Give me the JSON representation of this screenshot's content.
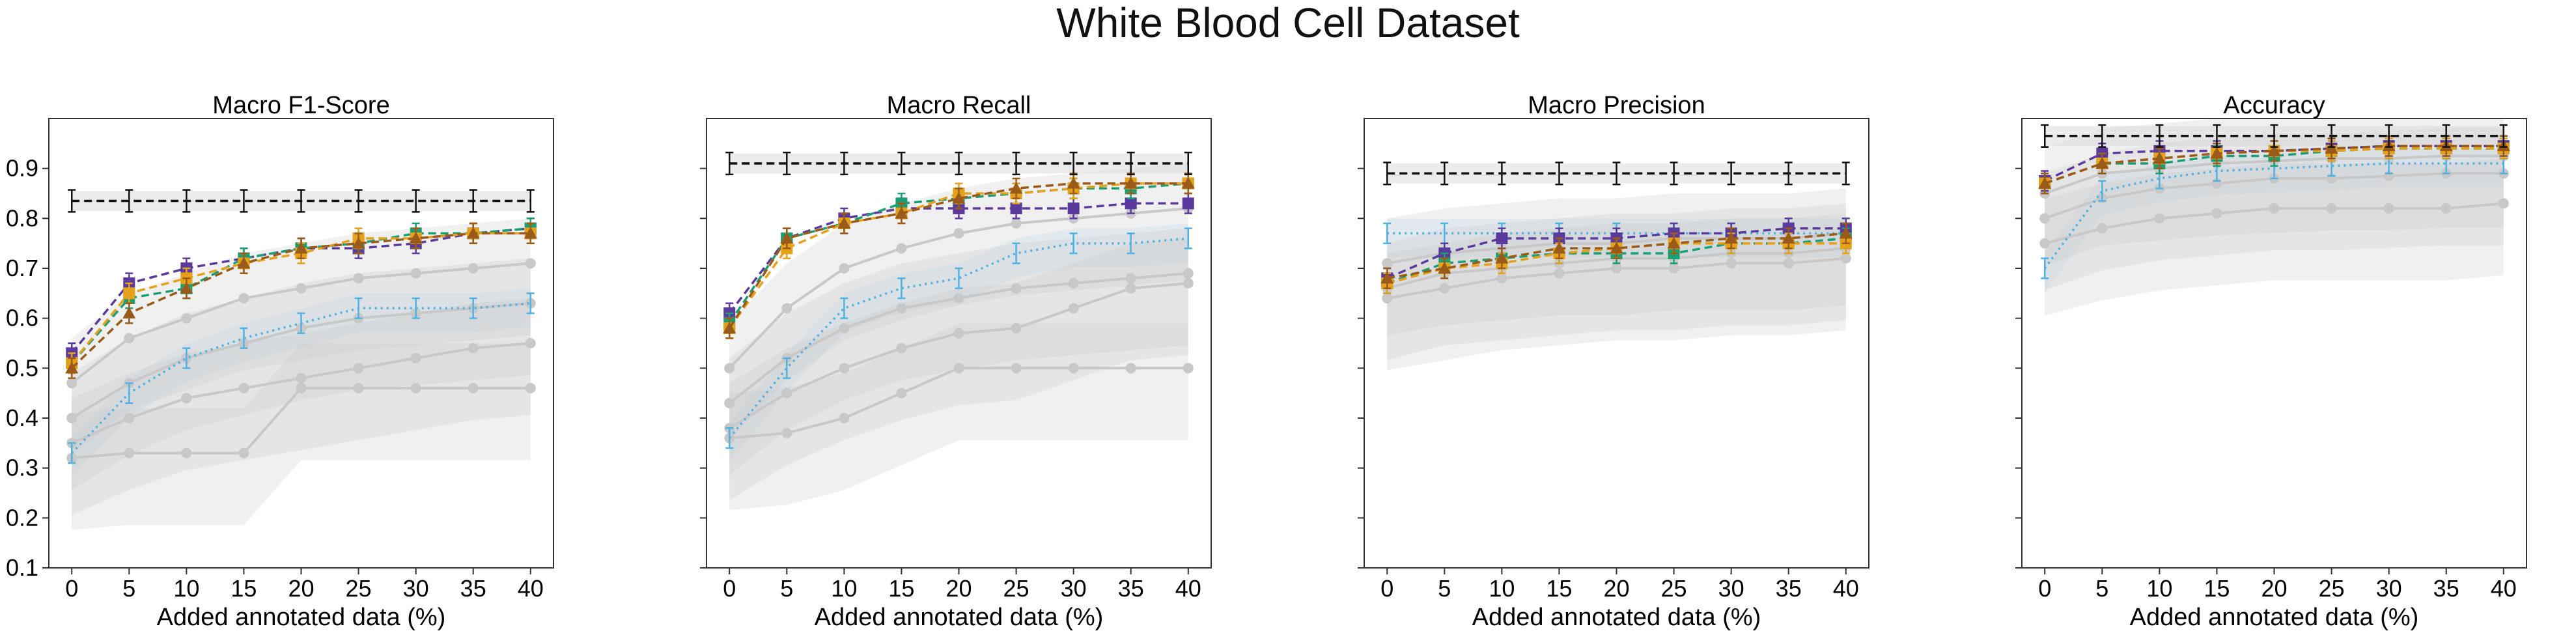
{
  "figure_title": "White Blood Cell Dataset",
  "colors": {
    "black": "#111111",
    "purple": "#5b3a9e",
    "green": "#1a9e74",
    "orange": "#e6a11a",
    "brown": "#9a5a1a",
    "blue": "#4fb2e3",
    "gray": "#c8c8c8"
  },
  "chart_data": [
    {
      "type": "line",
      "title": "Macro F1-Score",
      "xlabel": "Added annotated data (%)",
      "ylabel": "",
      "x": [
        0,
        5,
        10,
        15,
        20,
        25,
        30,
        35,
        40
      ],
      "xlim": [
        -2,
        42
      ],
      "ylim": [
        0.1,
        1.0
      ],
      "yticks": [
        "0.1",
        "0.2",
        "0.3",
        "0.4",
        "0.5",
        "0.6",
        "0.7",
        "0.8",
        "0.9"
      ],
      "grid": false,
      "legend": "none",
      "series": [
        {
          "values": [
            0.835,
            0.835,
            0.835,
            0.835,
            0.835,
            0.835,
            0.835,
            0.835,
            0.835
          ],
          "style": "dashed",
          "marker": "none",
          "color": "black"
        },
        {
          "values": [
            0.53,
            0.67,
            0.7,
            0.72,
            0.74,
            0.74,
            0.75,
            0.77,
            0.78
          ],
          "style": "dashed",
          "marker": "square",
          "color": "purple"
        },
        {
          "values": [
            0.51,
            0.64,
            0.66,
            0.72,
            0.74,
            0.75,
            0.77,
            0.77,
            0.78
          ],
          "style": "dashed",
          "marker": "square",
          "color": "green"
        },
        {
          "values": [
            0.51,
            0.65,
            0.68,
            0.71,
            0.73,
            0.76,
            0.76,
            0.77,
            0.77
          ],
          "style": "dashed",
          "marker": "square",
          "color": "orange"
        },
        {
          "values": [
            0.5,
            0.61,
            0.66,
            0.71,
            0.74,
            0.75,
            0.76,
            0.77,
            0.77
          ],
          "style": "dashed",
          "marker": "triangle",
          "color": "brown"
        },
        {
          "values": [
            0.33,
            0.45,
            0.52,
            0.56,
            0.59,
            0.62,
            0.62,
            0.62,
            0.63
          ],
          "style": "dotted",
          "marker": "none",
          "color": "blue"
        },
        {
          "values": [
            0.47,
            0.56,
            0.6,
            0.64,
            0.66,
            0.68,
            0.69,
            0.7,
            0.71
          ],
          "style": "solid",
          "marker": "circle",
          "color": "gray"
        },
        {
          "values": [
            0.4,
            0.47,
            0.52,
            0.55,
            0.58,
            0.6,
            0.61,
            0.62,
            0.63
          ],
          "style": "solid",
          "marker": "circle",
          "color": "gray"
        },
        {
          "values": [
            0.35,
            0.4,
            0.44,
            0.46,
            0.48,
            0.5,
            0.52,
            0.54,
            0.55
          ],
          "style": "solid",
          "marker": "circle",
          "color": "gray"
        },
        {
          "values": [
            0.32,
            0.33,
            0.33,
            0.33,
            0.46,
            0.46,
            0.46,
            0.46,
            0.46
          ],
          "style": "solid",
          "marker": "circle",
          "color": "gray"
        }
      ]
    },
    {
      "type": "line",
      "title": "Macro Recall",
      "xlabel": "Added annotated data (%)",
      "ylabel": "",
      "x": [
        0,
        5,
        10,
        15,
        20,
        25,
        30,
        35,
        40
      ],
      "xlim": [
        -2,
        42
      ],
      "ylim": [
        0.1,
        1.0
      ],
      "yticks": [],
      "grid": false,
      "legend": "none",
      "series": [
        {
          "values": [
            0.91,
            0.91,
            0.91,
            0.91,
            0.91,
            0.91,
            0.91,
            0.91,
            0.91
          ],
          "style": "dashed",
          "marker": "none",
          "color": "black"
        },
        {
          "values": [
            0.61,
            0.76,
            0.8,
            0.82,
            0.82,
            0.82,
            0.82,
            0.83,
            0.83
          ],
          "style": "dashed",
          "marker": "square",
          "color": "purple"
        },
        {
          "values": [
            0.59,
            0.76,
            0.79,
            0.83,
            0.84,
            0.85,
            0.86,
            0.86,
            0.87
          ],
          "style": "dashed",
          "marker": "square",
          "color": "green"
        },
        {
          "values": [
            0.58,
            0.74,
            0.79,
            0.81,
            0.85,
            0.85,
            0.86,
            0.87,
            0.87
          ],
          "style": "dashed",
          "marker": "square",
          "color": "orange"
        },
        {
          "values": [
            0.58,
            0.76,
            0.79,
            0.81,
            0.84,
            0.86,
            0.87,
            0.87,
            0.87
          ],
          "style": "dashed",
          "marker": "triangle",
          "color": "brown"
        },
        {
          "values": [
            0.36,
            0.5,
            0.62,
            0.66,
            0.68,
            0.73,
            0.75,
            0.75,
            0.76
          ],
          "style": "dotted",
          "marker": "none",
          "color": "blue"
        },
        {
          "values": [
            0.5,
            0.62,
            0.7,
            0.74,
            0.77,
            0.79,
            0.8,
            0.81,
            0.82
          ],
          "style": "solid",
          "marker": "circle",
          "color": "gray"
        },
        {
          "values": [
            0.43,
            0.52,
            0.58,
            0.62,
            0.64,
            0.66,
            0.67,
            0.68,
            0.69
          ],
          "style": "solid",
          "marker": "circle",
          "color": "gray"
        },
        {
          "values": [
            0.38,
            0.45,
            0.5,
            0.54,
            0.57,
            0.58,
            0.62,
            0.66,
            0.67
          ],
          "style": "solid",
          "marker": "circle",
          "color": "gray"
        },
        {
          "values": [
            0.36,
            0.37,
            0.4,
            0.45,
            0.5,
            0.5,
            0.5,
            0.5,
            0.5
          ],
          "style": "solid",
          "marker": "circle",
          "color": "gray"
        }
      ]
    },
    {
      "type": "line",
      "title": "Macro Precision",
      "xlabel": "Added annotated data (%)",
      "ylabel": "",
      "x": [
        0,
        5,
        10,
        15,
        20,
        25,
        30,
        35,
        40
      ],
      "xlim": [
        -2,
        42
      ],
      "ylim": [
        0.1,
        1.0
      ],
      "yticks": [],
      "grid": false,
      "legend": "none",
      "series": [
        {
          "values": [
            0.89,
            0.89,
            0.89,
            0.89,
            0.89,
            0.89,
            0.89,
            0.89,
            0.89
          ],
          "style": "dashed",
          "marker": "none",
          "color": "black"
        },
        {
          "values": [
            0.68,
            0.73,
            0.76,
            0.76,
            0.76,
            0.77,
            0.77,
            0.78,
            0.78
          ],
          "style": "dashed",
          "marker": "square",
          "color": "purple"
        },
        {
          "values": [
            0.67,
            0.71,
            0.72,
            0.73,
            0.73,
            0.73,
            0.75,
            0.75,
            0.76
          ],
          "style": "dashed",
          "marker": "square",
          "color": "green"
        },
        {
          "values": [
            0.67,
            0.7,
            0.71,
            0.73,
            0.74,
            0.75,
            0.75,
            0.75,
            0.75
          ],
          "style": "dashed",
          "marker": "square",
          "color": "orange"
        },
        {
          "values": [
            0.68,
            0.7,
            0.72,
            0.74,
            0.74,
            0.75,
            0.76,
            0.76,
            0.77
          ],
          "style": "dashed",
          "marker": "triangle",
          "color": "brown"
        },
        {
          "values": [
            0.77,
            0.77,
            0.77,
            0.77,
            0.77,
            0.77,
            0.77,
            0.77,
            0.77
          ],
          "style": "dotted",
          "marker": "none",
          "color": "blue"
        },
        {
          "values": [
            0.71,
            0.73,
            0.74,
            0.75,
            0.75,
            0.76,
            0.76,
            0.76,
            0.77
          ],
          "style": "solid",
          "marker": "circle",
          "color": "gray"
        },
        {
          "values": [
            0.66,
            0.69,
            0.7,
            0.71,
            0.72,
            0.72,
            0.73,
            0.73,
            0.74
          ],
          "style": "solid",
          "marker": "circle",
          "color": "gray"
        },
        {
          "values": [
            0.64,
            0.66,
            0.68,
            0.69,
            0.7,
            0.7,
            0.71,
            0.71,
            0.72
          ],
          "style": "solid",
          "marker": "circle",
          "color": "gray"
        }
      ]
    },
    {
      "type": "line",
      "title": "Accuracy",
      "xlabel": "Added annotated data (%)",
      "ylabel": "",
      "x": [
        0,
        5,
        10,
        15,
        20,
        25,
        30,
        35,
        40
      ],
      "xlim": [
        -2,
        42
      ],
      "ylim": [
        0.1,
        1.0
      ],
      "yticks": [],
      "grid": false,
      "legend": "none",
      "series": [
        {
          "values": [
            0.965,
            0.965,
            0.965,
            0.965,
            0.965,
            0.965,
            0.965,
            0.965,
            0.965
          ],
          "style": "dashed",
          "marker": "none",
          "color": "black"
        },
        {
          "values": [
            0.875,
            0.93,
            0.935,
            0.935,
            0.935,
            0.94,
            0.945,
            0.945,
            0.945
          ],
          "style": "dashed",
          "marker": "square",
          "color": "purple"
        },
        {
          "values": [
            0.87,
            0.91,
            0.91,
            0.925,
            0.925,
            0.935,
            0.94,
            0.94,
            0.94
          ],
          "style": "dashed",
          "marker": "square",
          "color": "green"
        },
        {
          "values": [
            0.87,
            0.91,
            0.92,
            0.93,
            0.935,
            0.935,
            0.94,
            0.94,
            0.94
          ],
          "style": "dashed",
          "marker": "square",
          "color": "orange"
        },
        {
          "values": [
            0.87,
            0.91,
            0.92,
            0.93,
            0.935,
            0.94,
            0.945,
            0.945,
            0.945
          ],
          "style": "dashed",
          "marker": "triangle",
          "color": "brown"
        },
        {
          "values": [
            0.7,
            0.855,
            0.88,
            0.895,
            0.9,
            0.905,
            0.91,
            0.91,
            0.91
          ],
          "style": "dotted",
          "marker": "none",
          "color": "blue"
        },
        {
          "values": [
            0.85,
            0.89,
            0.9,
            0.91,
            0.915,
            0.92,
            0.92,
            0.925,
            0.925
          ],
          "style": "solid",
          "marker": "circle",
          "color": "gray"
        },
        {
          "values": [
            0.8,
            0.84,
            0.86,
            0.87,
            0.88,
            0.88,
            0.885,
            0.89,
            0.89
          ],
          "style": "solid",
          "marker": "circle",
          "color": "gray"
        },
        {
          "values": [
            0.75,
            0.78,
            0.8,
            0.81,
            0.82,
            0.82,
            0.82,
            0.82,
            0.83
          ],
          "style": "solid",
          "marker": "circle",
          "color": "gray"
        }
      ]
    }
  ]
}
